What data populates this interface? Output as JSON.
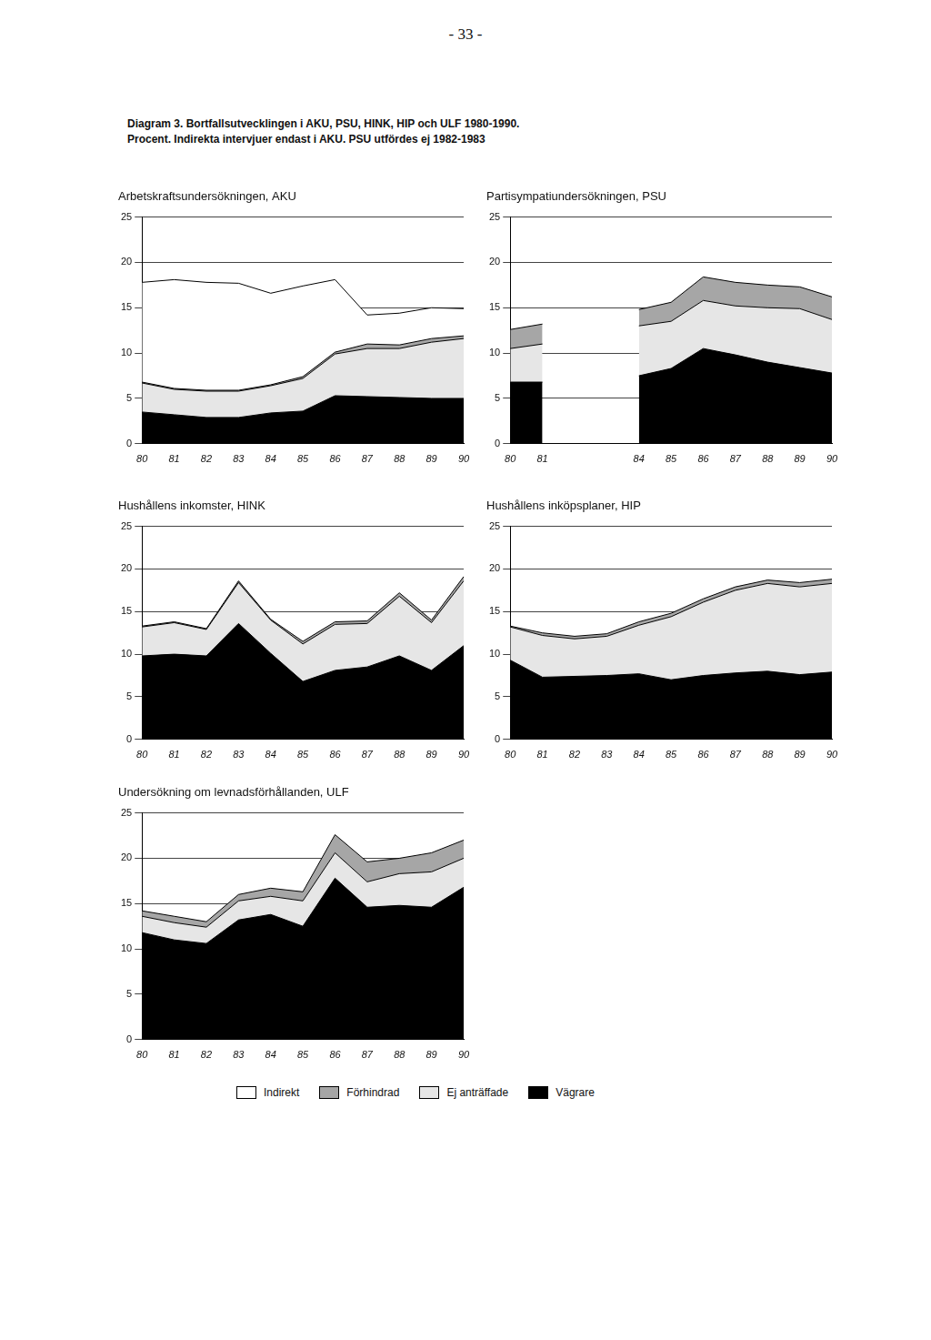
{
  "header": {
    "page_number": "- 33 -",
    "title": [
      "Diagram 3. Bortfallsutvecklingen i AKU, PSU, HINK, HIP och ULF 1980-1990.",
      "Procent. Indirekta intervjuer endast i AKU. PSU utfördes ej 1982-1983"
    ]
  },
  "chart_data": [
    {
      "type": "area",
      "title": "Arbetskraftsundersökningen, AKU",
      "stacked": true,
      "grid": true,
      "legend": "bottom",
      "categories": [
        "80",
        "81",
        "82",
        "83",
        "84",
        "85",
        "86",
        "87",
        "88",
        "89",
        "90"
      ],
      "ylim": [
        0,
        25
      ],
      "yticks": [
        0,
        5,
        10,
        15,
        20,
        25
      ],
      "series": [
        {
          "name": "Vägrare",
          "color": "#000000",
          "values": [
            3.5,
            3.2,
            2.9,
            2.9,
            3.4,
            3.6,
            5.3,
            5.2,
            5.1,
            5.0,
            5.0
          ]
        },
        {
          "name": "Ej anträffade",
          "color": "#e6e6e6",
          "values": [
            3.2,
            2.8,
            2.9,
            2.9,
            3.0,
            3.6,
            4.6,
            5.3,
            5.4,
            6.2,
            6.6
          ]
        },
        {
          "name": "Förhindrad",
          "color": "#a6a6a6",
          "values": [
            0.1,
            0.1,
            0.1,
            0.1,
            0.1,
            0.2,
            0.2,
            0.5,
            0.4,
            0.4,
            0.3
          ]
        },
        {
          "name": "Indirekt",
          "color": "#ffffff",
          "values": [
            11.0,
            12.0,
            11.9,
            11.8,
            10.1,
            10.0,
            8.0,
            3.2,
            3.5,
            3.4,
            3.0
          ]
        }
      ]
    },
    {
      "type": "area",
      "title": "Partisympatiundersökningen, PSU",
      "stacked": true,
      "grid": true,
      "legend": "bottom",
      "categories": [
        "80",
        "81",
        null,
        null,
        "84",
        "85",
        "86",
        "87",
        "88",
        "89",
        "90"
      ],
      "ylim": [
        0,
        25
      ],
      "yticks": [
        0,
        5,
        10,
        15,
        20,
        25
      ],
      "series": [
        {
          "name": "Vägrare",
          "color": "#000000",
          "values": [
            6.8,
            6.8,
            null,
            null,
            7.5,
            8.3,
            10.5,
            9.8,
            9.0,
            8.4,
            7.8
          ]
        },
        {
          "name": "Ej anträffade",
          "color": "#e6e6e6",
          "values": [
            3.7,
            4.2,
            null,
            null,
            5.5,
            5.2,
            5.3,
            5.4,
            6.0,
            6.5,
            5.9
          ]
        },
        {
          "name": "Förhindrad",
          "color": "#a6a6a6",
          "values": [
            2.1,
            2.2,
            null,
            null,
            1.8,
            2.1,
            2.6,
            2.6,
            2.5,
            2.4,
            2.5
          ]
        }
      ]
    },
    {
      "type": "area",
      "title": "Hushållens inkomster, HINK",
      "stacked": true,
      "grid": true,
      "legend": "bottom",
      "categories": [
        "80",
        "81",
        "82",
        "83",
        "84",
        "85",
        "86",
        "87",
        "88",
        "89",
        "90"
      ],
      "ylim": [
        0,
        25
      ],
      "yticks": [
        0,
        5,
        10,
        15,
        20,
        25
      ],
      "series": [
        {
          "name": "Vägrare",
          "color": "#000000",
          "values": [
            9.8,
            10.0,
            9.8,
            13.6,
            10.1,
            6.8,
            8.1,
            8.5,
            9.8,
            8.1,
            11.0
          ]
        },
        {
          "name": "Ej anträffade",
          "color": "#e6e6e6",
          "values": [
            3.4,
            3.7,
            3.1,
            4.8,
            3.9,
            4.4,
            5.4,
            5.1,
            7.0,
            5.6,
            7.6
          ]
        },
        {
          "name": "Förhindrad",
          "color": "#a6a6a6",
          "values": [
            0.1,
            0.1,
            0.1,
            0.2,
            0.1,
            0.3,
            0.3,
            0.3,
            0.4,
            0.3,
            0.5
          ]
        }
      ]
    },
    {
      "type": "area",
      "title": "Hushållens inköpsplaner, HIP",
      "stacked": true,
      "grid": true,
      "legend": "bottom",
      "categories": [
        "80",
        "81",
        "82",
        "83",
        "84",
        "85",
        "86",
        "87",
        "88",
        "89",
        "90"
      ],
      "ylim": [
        0,
        25
      ],
      "yticks": [
        0,
        5,
        10,
        15,
        20,
        25
      ],
      "series": [
        {
          "name": "Vägrare",
          "color": "#000000",
          "values": [
            9.3,
            7.3,
            7.4,
            7.5,
            7.7,
            7.0,
            7.5,
            7.8,
            8.0,
            7.6,
            7.9
          ]
        },
        {
          "name": "Ej anträffade",
          "color": "#e6e6e6",
          "values": [
            3.9,
            4.9,
            4.4,
            4.6,
            5.7,
            7.4,
            8.6,
            9.7,
            10.3,
            10.3,
            10.4
          ]
        },
        {
          "name": "Förhindrad",
          "color": "#a6a6a6",
          "values": [
            0.1,
            0.3,
            0.3,
            0.3,
            0.4,
            0.4,
            0.4,
            0.4,
            0.4,
            0.5,
            0.5
          ]
        }
      ]
    },
    {
      "type": "area",
      "title": "Undersökning om levnadsförhållanden, ULF",
      "stacked": true,
      "grid": true,
      "legend": "bottom",
      "categories": [
        "80",
        "81",
        "82",
        "83",
        "84",
        "85",
        "86",
        "87",
        "88",
        "89",
        "90"
      ],
      "ylim": [
        0,
        25
      ],
      "yticks": [
        0,
        5,
        10,
        15,
        20,
        25
      ],
      "series": [
        {
          "name": "Vägrare",
          "color": "#000000",
          "values": [
            11.8,
            11.0,
            10.6,
            13.2,
            13.8,
            12.5,
            17.8,
            14.6,
            14.8,
            14.6,
            16.8
          ]
        },
        {
          "name": "Ej anträffade",
          "color": "#e6e6e6",
          "values": [
            1.8,
            1.9,
            1.8,
            2.1,
            2.0,
            2.8,
            2.8,
            2.8,
            3.5,
            3.9,
            3.2
          ]
        },
        {
          "name": "Förhindrad",
          "color": "#a6a6a6",
          "values": [
            0.6,
            0.7,
            0.6,
            0.7,
            0.9,
            1.0,
            2.0,
            2.2,
            1.7,
            2.1,
            2.0
          ]
        }
      ]
    }
  ]
}
